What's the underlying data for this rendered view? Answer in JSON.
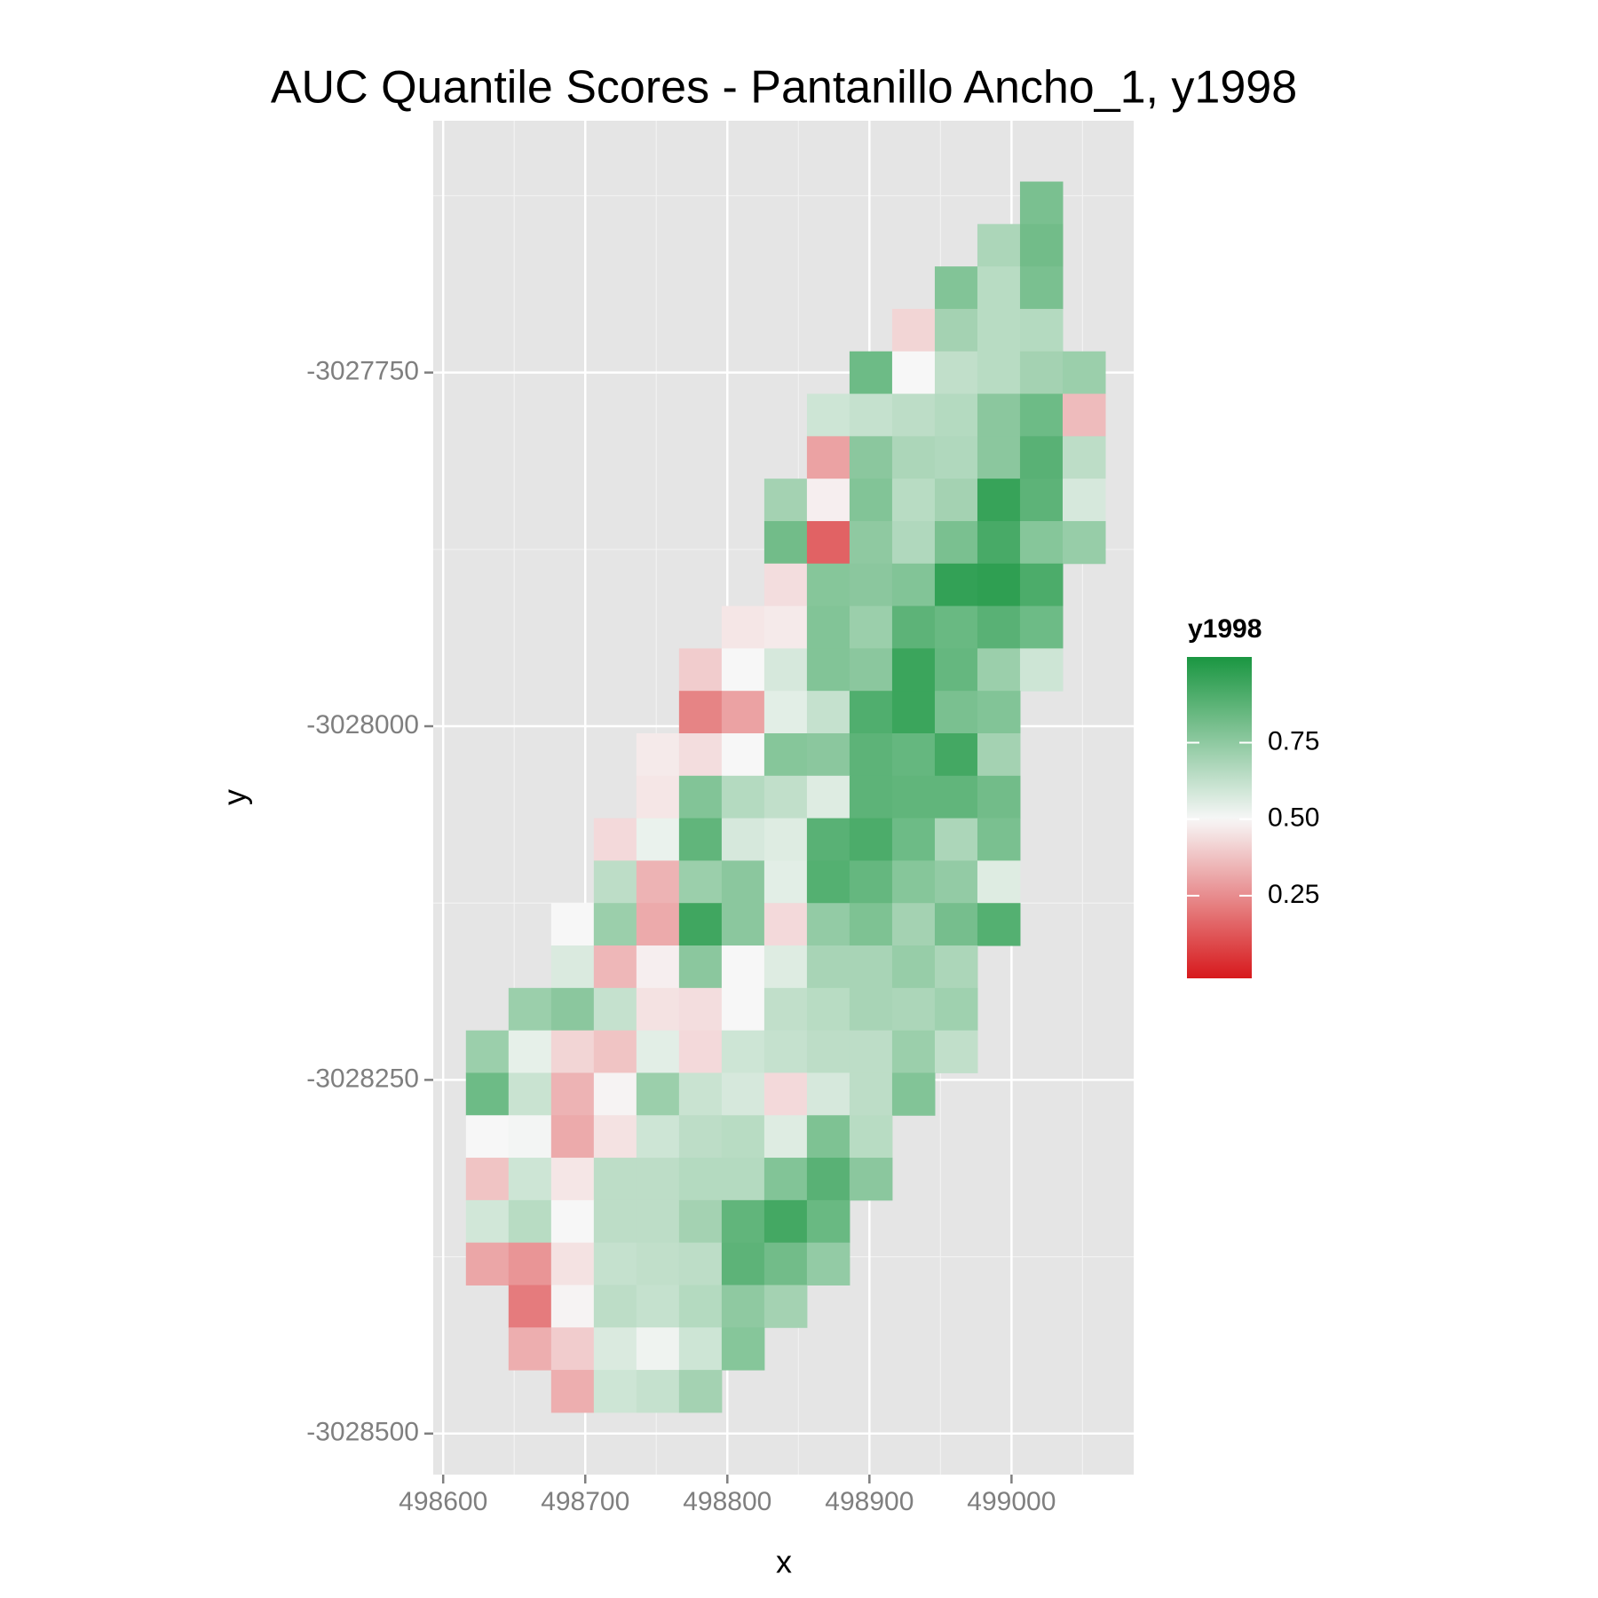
{
  "chart_data": {
    "type": "raster",
    "title": "AUC Quantile Scores - Pantanillo Ancho_1, y1998",
    "x_label": "x",
    "y_label": "y",
    "legend_title": "y1998",
    "x": [
      498631,
      498661,
      498691,
      498721,
      498751,
      498781,
      498811,
      498841,
      498871,
      498901,
      498931,
      498961,
      498991,
      499021,
      499051
    ],
    "y": [
      -3027630,
      -3027660,
      -3027690,
      -3027720,
      -3027750,
      -3027780,
      -3027810,
      -3027840,
      -3027870,
      -3027900,
      -3027930,
      -3027960,
      -3027990,
      -3028020,
      -3028050,
      -3028080,
      -3028110,
      -3028140,
      -3028170,
      -3028200,
      -3028230,
      -3028260,
      -3028290,
      -3028320,
      -3028350,
      -3028380,
      -3028410,
      -3028440,
      -3028470
    ],
    "values": [
      [
        null,
        null,
        null,
        null,
        null,
        null,
        null,
        null,
        null,
        null,
        null,
        null,
        null,
        0.8,
        null
      ],
      [
        null,
        null,
        null,
        null,
        null,
        null,
        null,
        null,
        null,
        null,
        null,
        null,
        0.68,
        0.82,
        null
      ],
      [
        null,
        null,
        null,
        null,
        null,
        null,
        null,
        null,
        null,
        null,
        null,
        0.78,
        0.65,
        0.8,
        null
      ],
      [
        null,
        null,
        null,
        null,
        null,
        null,
        null,
        null,
        null,
        null,
        0.42,
        0.7,
        0.65,
        0.66,
        null
      ],
      [
        null,
        null,
        null,
        null,
        null,
        null,
        null,
        null,
        null,
        0.83,
        0.5,
        0.63,
        0.65,
        0.7,
        0.72
      ],
      [
        null,
        null,
        null,
        null,
        null,
        null,
        null,
        null,
        0.6,
        0.62,
        0.64,
        0.66,
        0.76,
        0.83,
        0.36
      ],
      [
        null,
        null,
        null,
        null,
        null,
        null,
        null,
        null,
        0.3,
        0.76,
        0.68,
        0.67,
        0.76,
        0.88,
        0.64
      ],
      [
        null,
        null,
        null,
        null,
        null,
        null,
        null,
        0.7,
        0.48,
        0.78,
        0.65,
        0.7,
        0.96,
        0.87,
        0.58
      ],
      [
        null,
        null,
        null,
        null,
        null,
        null,
        null,
        0.82,
        0.15,
        0.75,
        0.67,
        0.8,
        0.92,
        0.77,
        0.73
      ],
      [
        null,
        null,
        null,
        null,
        null,
        null,
        null,
        0.44,
        0.77,
        0.76,
        0.78,
        0.97,
        0.98,
        0.91,
        null
      ],
      [
        null,
        null,
        null,
        null,
        null,
        null,
        0.46,
        0.47,
        0.78,
        0.72,
        0.87,
        0.84,
        0.88,
        0.83,
        null
      ],
      [
        null,
        null,
        null,
        null,
        null,
        0.4,
        0.5,
        0.58,
        0.78,
        0.76,
        0.95,
        0.85,
        0.72,
        0.6,
        null
      ],
      [
        null,
        null,
        null,
        null,
        null,
        0.23,
        0.3,
        0.55,
        0.62,
        0.9,
        0.95,
        0.8,
        0.78,
        null,
        null
      ],
      [
        null,
        null,
        null,
        null,
        0.47,
        0.44,
        0.5,
        0.77,
        0.76,
        0.87,
        0.85,
        0.93,
        0.7,
        null,
        null
      ],
      [
        null,
        null,
        null,
        null,
        0.46,
        0.78,
        0.66,
        0.63,
        0.56,
        0.87,
        0.86,
        0.86,
        0.82,
        null,
        null
      ],
      [
        null,
        null,
        null,
        0.43,
        0.53,
        0.86,
        0.58,
        0.56,
        0.88,
        0.91,
        0.83,
        0.68,
        0.8,
        null,
        null
      ],
      [
        null,
        null,
        null,
        0.64,
        0.34,
        0.72,
        0.76,
        0.55,
        0.89,
        0.85,
        0.77,
        0.74,
        0.56,
        null,
        null
      ],
      [
        null,
        null,
        0.5,
        0.72,
        0.32,
        0.94,
        0.76,
        0.43,
        0.74,
        0.79,
        0.7,
        0.81,
        0.89,
        null,
        null
      ],
      [
        null,
        null,
        0.57,
        0.35,
        0.48,
        0.76,
        0.5,
        0.56,
        0.69,
        0.69,
        0.73,
        0.68,
        null,
        null,
        null
      ],
      [
        null,
        0.72,
        0.76,
        0.62,
        0.45,
        0.44,
        0.5,
        0.63,
        0.65,
        0.69,
        0.68,
        0.71,
        null,
        null,
        null
      ],
      [
        0.72,
        0.54,
        0.42,
        0.38,
        0.55,
        0.43,
        0.6,
        0.62,
        0.64,
        0.64,
        0.72,
        0.63,
        null,
        null,
        null
      ],
      [
        0.83,
        0.61,
        0.34,
        0.49,
        0.72,
        0.61,
        0.58,
        0.43,
        0.58,
        0.64,
        0.78,
        null,
        null,
        null,
        null
      ],
      [
        0.5,
        0.51,
        0.32,
        0.45,
        0.6,
        0.64,
        0.65,
        0.56,
        0.79,
        0.65,
        null,
        null,
        null,
        null,
        null
      ],
      [
        0.38,
        0.6,
        0.46,
        0.64,
        0.64,
        0.66,
        0.66,
        0.78,
        0.88,
        0.76,
        null,
        null,
        null,
        null,
        null
      ],
      [
        0.59,
        0.65,
        0.5,
        0.64,
        0.64,
        0.7,
        0.86,
        0.93,
        0.84,
        null,
        null,
        null,
        null,
        null,
        null
      ],
      [
        0.31,
        0.27,
        0.45,
        0.62,
        0.63,
        0.64,
        0.87,
        0.82,
        0.74,
        null,
        null,
        null,
        null,
        null,
        null
      ],
      [
        null,
        0.21,
        0.49,
        0.64,
        0.62,
        0.66,
        0.75,
        0.7,
        null,
        null,
        null,
        null,
        null,
        null,
        null
      ],
      [
        null,
        0.33,
        0.4,
        0.57,
        0.52,
        0.6,
        0.77,
        null,
        null,
        null,
        null,
        null,
        null,
        null,
        null
      ],
      [
        null,
        null,
        0.33,
        0.6,
        0.62,
        0.7,
        null,
        null,
        null,
        null,
        null,
        null,
        null,
        null,
        null
      ]
    ],
    "xlim": [
      498593,
      499086
    ],
    "ylim": [
      -3028529,
      -3027572
    ],
    "xticks": [
      498600,
      498700,
      498800,
      498900,
      499000
    ],
    "yticks": [
      -3028500,
      -3028250,
      -3028000,
      -3027750
    ],
    "grid": true,
    "fill_lim": [
      -0.02,
      1.03
    ],
    "fill_ticks": [
      0.25,
      {
        "value": 0.5,
        "label": "0.50"
      },
      0.75
    ],
    "fill_midpoint": 0.5,
    "colors": {
      "low": "#d7191c",
      "mid": "#f7f7f7",
      "high": "#1a9641"
    }
  }
}
